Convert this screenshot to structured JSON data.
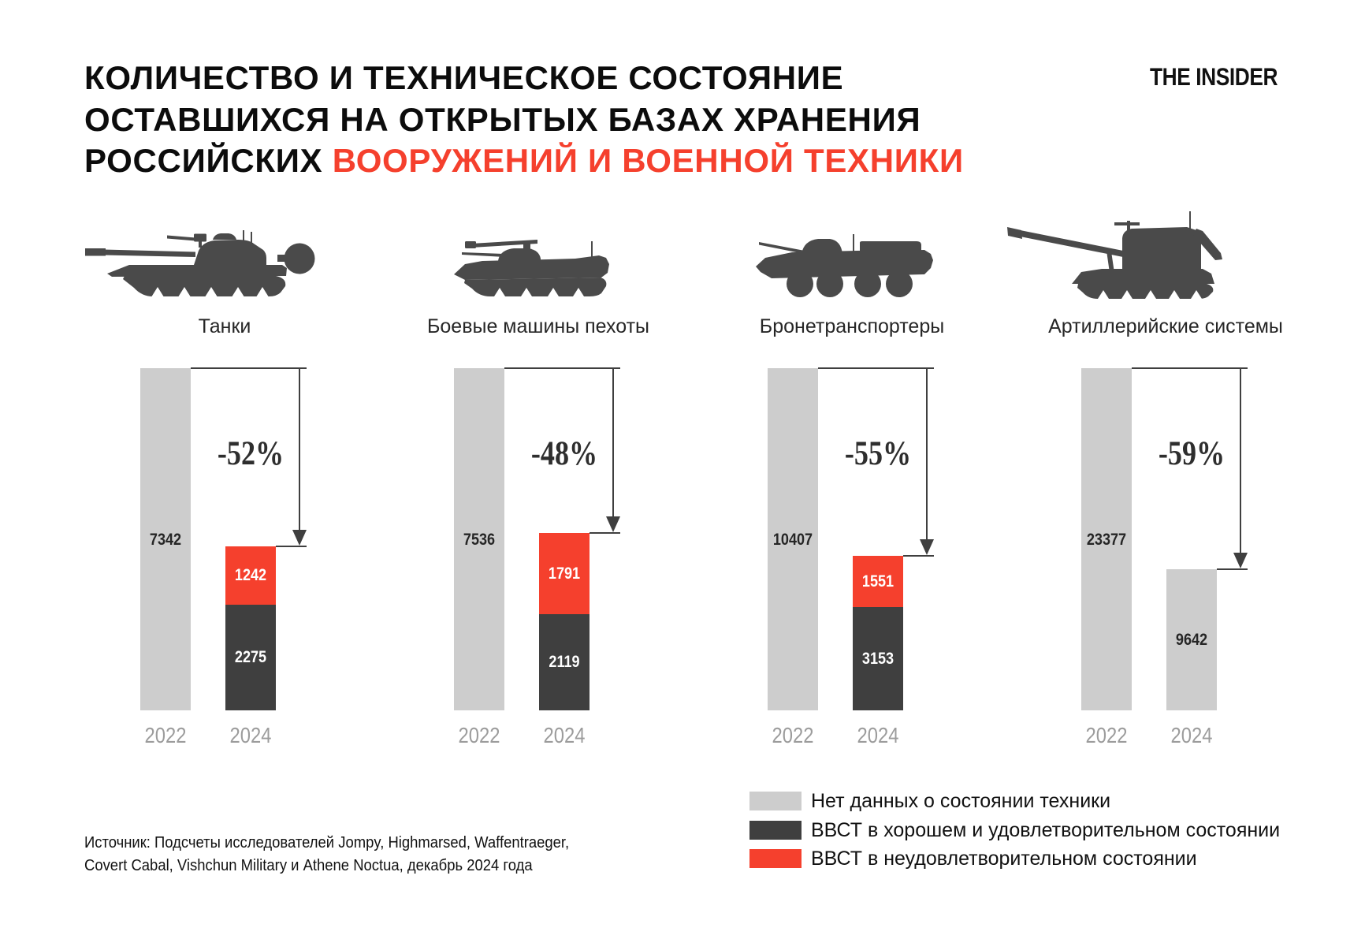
{
  "header": {
    "title_line1": "КОЛИЧЕСТВО И ТЕХНИЧЕСКОЕ СОСТОЯНИЕ",
    "title_line2": "ОСТАВШИХСЯ НА ОТКРЫТЫХ БАЗАХ ХРАНЕНИЯ",
    "title_line3_black": "РОССИЙСКИХ ",
    "title_line3_red": "ВООРУЖЕНИЙ И ВОЕННОЙ ТЕХНИКИ",
    "logo": "THE INSIDER"
  },
  "colors": {
    "red": "#f5402d",
    "dark": "#3f3f3f",
    "light_gray": "#cdcdcd",
    "silhouette": "#4a4a4a",
    "line": "#3f3f3f",
    "year_label": "#9c9c9c",
    "value_label_dark": "#262626",
    "value_label_light": "#ffffff"
  },
  "chart_data": [
    {
      "type": "bar",
      "title": "Танки",
      "icon": "tank",
      "categories": [
        "2022",
        "2024"
      ],
      "bars": [
        {
          "year": "2022",
          "segments": [
            {
              "name": "no_data",
              "value": 7342
            }
          ]
        },
        {
          "year": "2024",
          "segments": [
            {
              "name": "good",
              "value": 2275
            },
            {
              "name": "bad",
              "value": 1242
            }
          ]
        }
      ],
      "change_label": "-52%",
      "ylim": [
        0,
        7342
      ]
    },
    {
      "type": "bar",
      "title": "Боевые машины пехоты",
      "icon": "ifv",
      "categories": [
        "2022",
        "2024"
      ],
      "bars": [
        {
          "year": "2022",
          "segments": [
            {
              "name": "no_data",
              "value": 7536
            }
          ]
        },
        {
          "year": "2024",
          "segments": [
            {
              "name": "good",
              "value": 2119
            },
            {
              "name": "bad",
              "value": 1791
            }
          ]
        }
      ],
      "change_label": "-48%",
      "ylim": [
        0,
        7536
      ]
    },
    {
      "type": "bar",
      "title": "Бронетранспортеры",
      "icon": "apc",
      "categories": [
        "2022",
        "2024"
      ],
      "bars": [
        {
          "year": "2022",
          "segments": [
            {
              "name": "no_data",
              "value": 10407
            }
          ]
        },
        {
          "year": "2024",
          "segments": [
            {
              "name": "good",
              "value": 3153
            },
            {
              "name": "bad",
              "value": 1551
            }
          ]
        }
      ],
      "change_label": "-55%",
      "ylim": [
        0,
        10407
      ]
    },
    {
      "type": "bar",
      "title": "Артиллерийские системы",
      "icon": "spg",
      "categories": [
        "2022",
        "2024"
      ],
      "bars": [
        {
          "year": "2022",
          "segments": [
            {
              "name": "no_data",
              "value": 23377
            }
          ]
        },
        {
          "year": "2024",
          "segments": [
            {
              "name": "no_data",
              "value": 9642
            }
          ]
        }
      ],
      "change_label": "-59%",
      "ylim": [
        0,
        23377
      ]
    }
  ],
  "legend": {
    "items": [
      {
        "name": "no_data",
        "label": "Нет данных о состоянии техники",
        "color": "#cdcdcd"
      },
      {
        "name": "good",
        "label": "ВВСТ в хорошем и удовлетворительном состоянии",
        "color": "#3f3f3f"
      },
      {
        "name": "bad",
        "label": "ВВСТ в неудовлетворительном состоянии",
        "color": "#f5402d"
      }
    ]
  },
  "source": {
    "line1": "Источник: Подсчеты исследователей Jompy, Highmarsed, Waffentraeger,",
    "line2": "Covert Cabal, Vishchun Military и Athene Noctua, декабрь 2024 года"
  }
}
